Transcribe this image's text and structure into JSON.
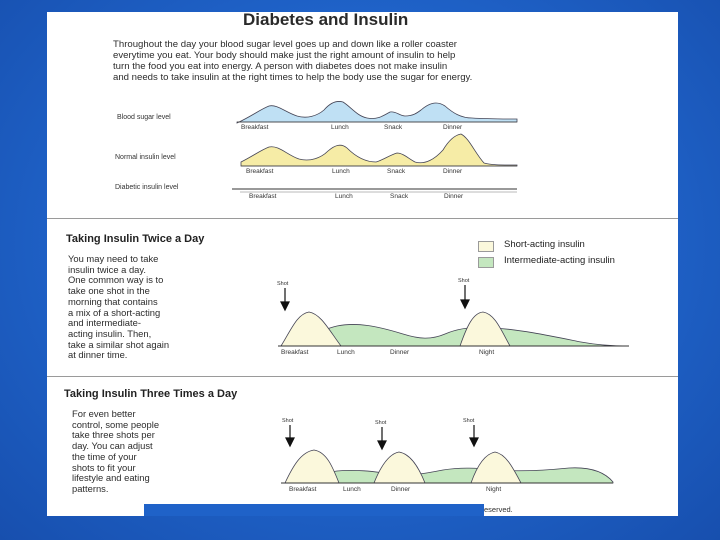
{
  "title": "Diabetes and Insulin",
  "intro_lines": [
    "Throughout the day your blood sugar level goes up and down like a roller coaster",
    "everytime you eat.  Your body should make just the right amount of insulin to help",
    "turn the food you eat into energy.  A person with diabetes does not make insulin",
    "and needs to take insulin at the right times to help the body use the sugar for energy."
  ],
  "rows": [
    {
      "label": "Blood sugar level",
      "ticks": [
        "Breakfast",
        "Lunch",
        "Snack",
        "Dinner"
      ],
      "color": "#bfe0f4"
    },
    {
      "label": "Normal insulin level",
      "ticks": [
        "Breakfast",
        "Lunch",
        "Snack",
        "Dinner"
      ],
      "color": "#f6eca6"
    },
    {
      "label": "Diabetic insulin level",
      "ticks": [
        "Breakfast",
        "Lunch",
        "Snack",
        "Dinner"
      ]
    }
  ],
  "twice": {
    "heading": "Taking Insulin Twice a Day",
    "text_lines": [
      "You may need to take",
      "insulin twice a day.",
      "One common way is to",
      "take one shot in the",
      "morning that contains",
      "a mix of a short-acting",
      "and intermediate-",
      "acting insulin.  Then,",
      "take a similar shot again",
      "at dinner time."
    ],
    "shot_labels": [
      "Shot",
      "Shot"
    ],
    "ticks": [
      "Breakfast",
      "Lunch",
      "Dinner",
      "Night"
    ]
  },
  "legend": {
    "short": {
      "label": "Short-acting insulin",
      "color": "#fbf8dc"
    },
    "intermediate": {
      "label": "Intermediate-acting insulin",
      "color": "#c4e7bf"
    }
  },
  "three": {
    "heading": "Taking Insulin Three Times a Day",
    "text_lines": [
      "For even better",
      "control, some people",
      "take three shots per",
      "day.  You can adjust",
      "the time of your",
      "shots to fit your",
      "lifestyle and eating",
      "patterns."
    ],
    "shot_labels": [
      "Shot",
      "Shot",
      "Shot"
    ],
    "ticks": [
      "Breakfast",
      "Lunch",
      "Dinner",
      "Night"
    ]
  },
  "footer_text": "eserved."
}
